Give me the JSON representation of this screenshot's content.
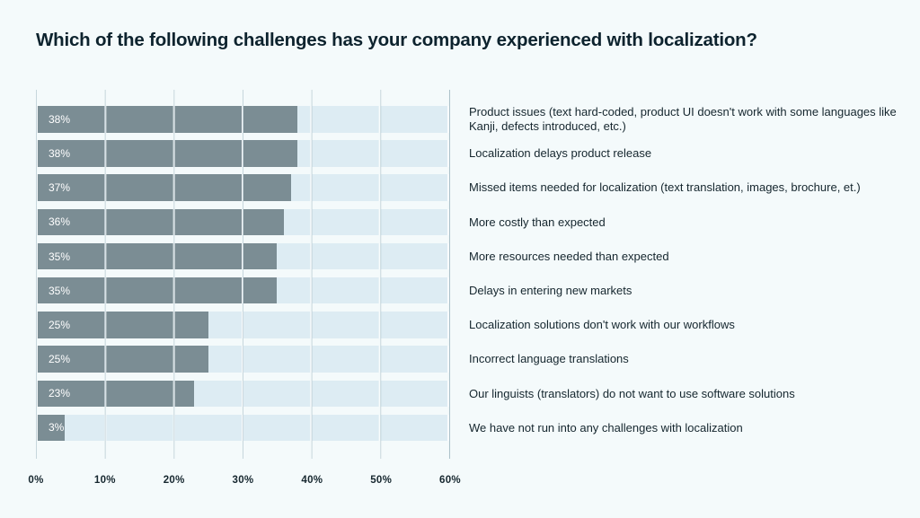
{
  "chart_data": {
    "type": "bar",
    "orientation": "horizontal",
    "title": "Which of the following challenges has your company experienced with localization?",
    "categories": [
      "Product issues (text hard-coded, product UI doesn't work with some languages like Kanji, defects introduced, etc.)",
      "Localization delays product release",
      "Missed items needed for localization (text translation, images, brochure, et.)",
      "More costly than expected",
      "More resources needed than expected",
      "Delays in entering new markets",
      "Localization solutions don't work with our workflows",
      "Incorrect language translations",
      "Our linguists (translators) do not want to use software solutions",
      "We have not run into any challenges with localization"
    ],
    "values": [
      38,
      38,
      37,
      36,
      35,
      35,
      25,
      25,
      23,
      3
    ],
    "value_labels": [
      "38%",
      "38%",
      "37%",
      "36%",
      "35%",
      "35%",
      "25%",
      "25%",
      "23%",
      "3%"
    ],
    "x_ticks": [
      "0%",
      "10%",
      "20%",
      "30%",
      "40%",
      "50%",
      "60%"
    ],
    "xlim": [
      0,
      60
    ],
    "xlabel": "",
    "ylabel": "",
    "grid": "vertical",
    "legend": "none",
    "colors": {
      "background": "#f4fafb",
      "bar": "#7b8d94",
      "track": "#ddecf3",
      "text": "#15262e",
      "value_label": "#ffffff"
    }
  }
}
